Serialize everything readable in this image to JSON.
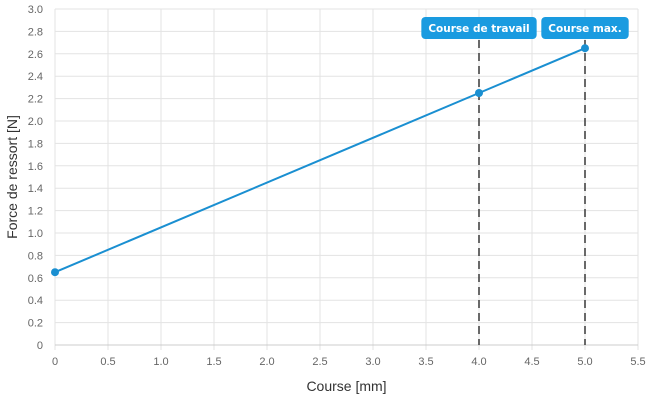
{
  "chart_data": {
    "type": "line",
    "xlabel": "Course [mm]",
    "ylabel": "Force de ressort [N]",
    "xlim": [
      0,
      5.5
    ],
    "ylim": [
      0,
      3.0
    ],
    "x_ticks": [
      "0",
      "0.5",
      "1.0",
      "1.5",
      "2.0",
      "2.5",
      "3.0",
      "3.5",
      "4.0",
      "4.5",
      "5.0",
      "5.5"
    ],
    "y_ticks": [
      "0",
      "0.2",
      "0.4",
      "0.6",
      "0.8",
      "1.0",
      "1.2",
      "1.4",
      "1.6",
      "1.8",
      "2.0",
      "2.2",
      "2.4",
      "2.6",
      "2.8",
      "3.0"
    ],
    "grid": true,
    "series": [
      {
        "color": "#1a8fd1",
        "points": [
          {
            "x": 0,
            "y": 0.65
          },
          {
            "x": 4.0,
            "y": 2.25
          },
          {
            "x": 5.0,
            "y": 2.65
          }
        ]
      }
    ],
    "markers": [
      {
        "x": 4.0,
        "label": "Course de travail",
        "color": "#1a9be0"
      },
      {
        "x": 5.0,
        "label": "Course max.",
        "color": "#1a9be0"
      }
    ]
  }
}
